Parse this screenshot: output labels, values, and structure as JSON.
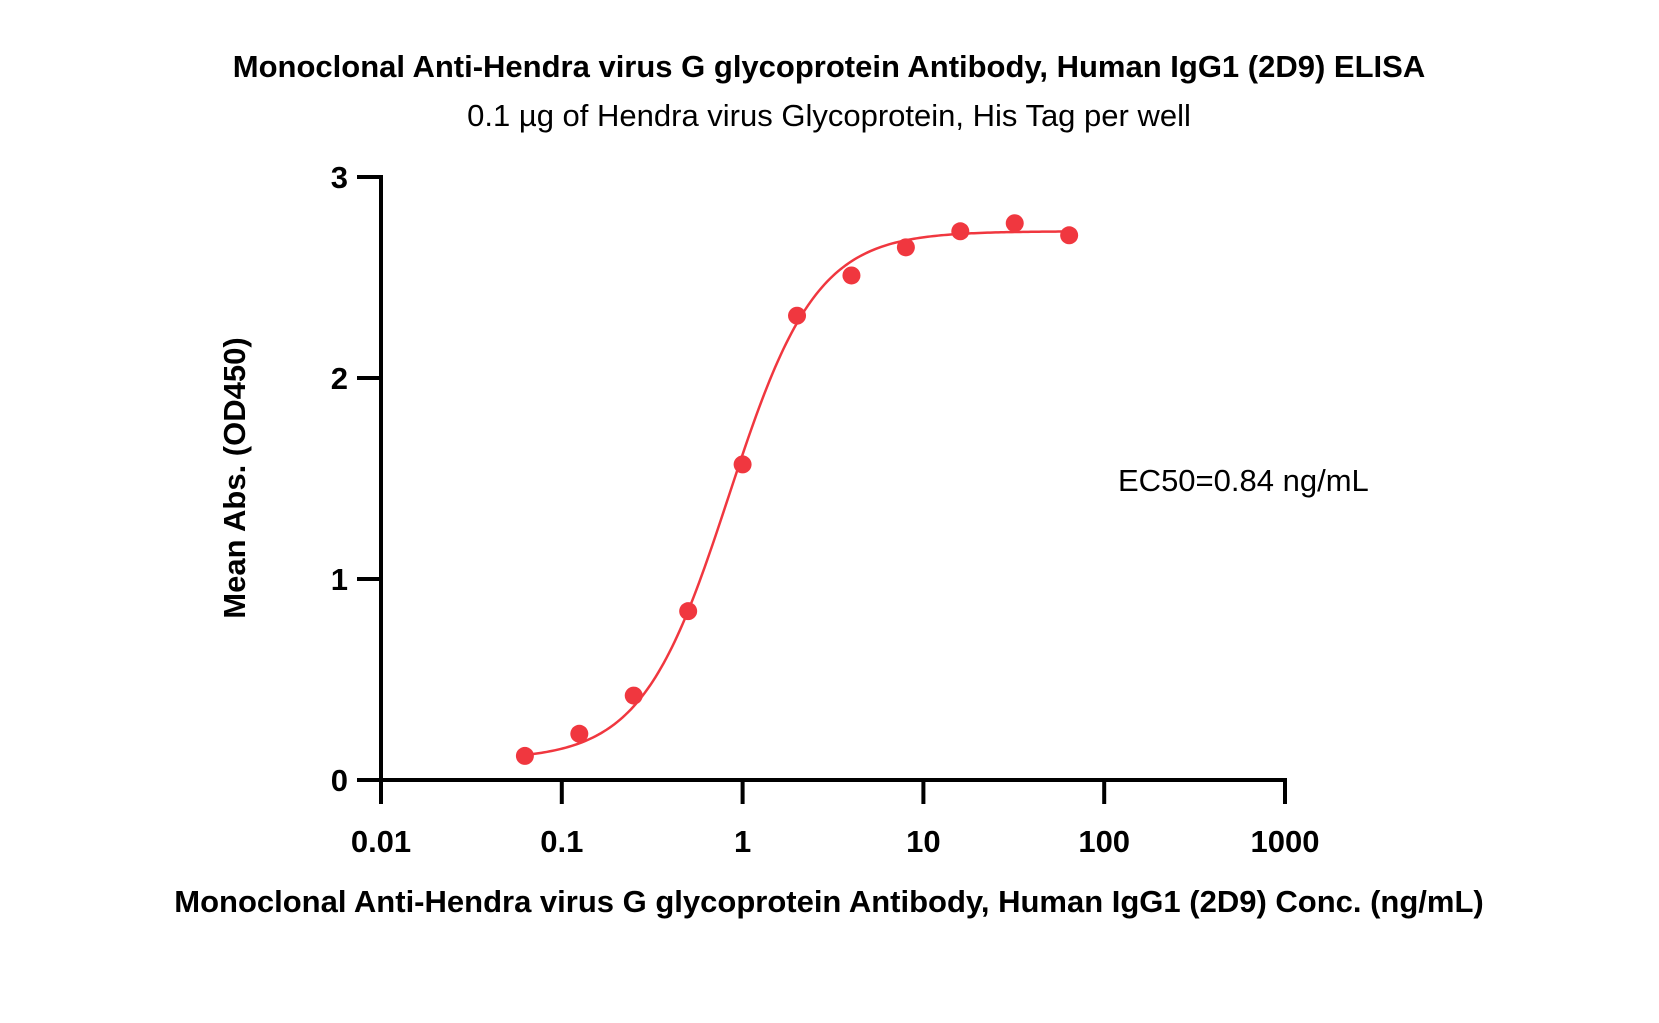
{
  "chart_data": {
    "type": "scatter",
    "title": "Monoclonal Anti-Hendra virus G glycoprotein Antibody, Human IgG1 (2D9) ELISA",
    "subtitle": "0.1 µg of Hendra virus Glycoprotein, His Tag per well",
    "xlabel": "Monoclonal Anti-Hendra virus G glycoprotein Antibody, Human IgG1 (2D9) Conc. (ng/mL)",
    "ylabel": "Mean Abs. (OD450)",
    "x_scale": "log",
    "xlim": [
      0.01,
      1000
    ],
    "ylim": [
      0,
      3
    ],
    "x_ticks": [
      0.01,
      0.1,
      1,
      10,
      100,
      1000
    ],
    "x_tick_labels": [
      "0.01",
      "0.1",
      "1",
      "10",
      "100",
      "1000"
    ],
    "y_ticks": [
      0,
      1,
      2,
      3
    ],
    "y_tick_labels": [
      "0",
      "1",
      "2",
      "3"
    ],
    "grid": false,
    "color": "#f0373f",
    "series": [
      {
        "x": [
          0.0625,
          0.125,
          0.25,
          0.5,
          1,
          2,
          4,
          8,
          16,
          32,
          64
        ],
        "y": [
          0.12,
          0.23,
          0.42,
          0.84,
          1.57,
          2.31,
          2.51,
          2.65,
          2.73,
          2.77,
          2.71
        ]
      }
    ],
    "fit_curve": {
      "model": "4PL",
      "bottom": 0.1,
      "top": 2.73,
      "ec50": 0.84,
      "hill": 1.8
    },
    "annotation": "EC50=0.84 ng/mL"
  }
}
